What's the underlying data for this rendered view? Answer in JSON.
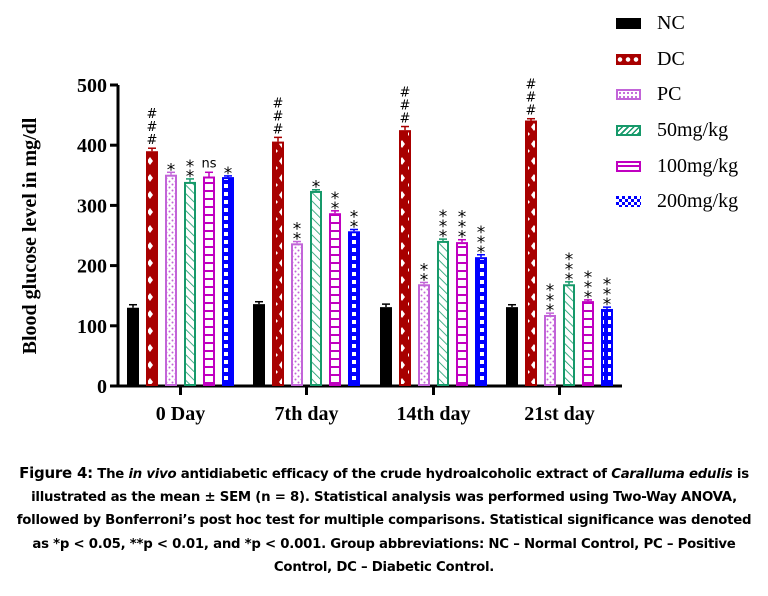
{
  "chart_data": {
    "type": "bar",
    "title": "",
    "xlabel": "",
    "ylabel": "Blood glucose level in mg/dl",
    "ylim": [
      0,
      500
    ],
    "yticks": [
      0,
      100,
      200,
      300,
      400,
      500
    ],
    "grid": false,
    "legend_position": "top-right",
    "categories": [
      "0 Day",
      "7th day",
      "14th day",
      "21st day"
    ],
    "series": [
      {
        "name": "NC",
        "color": "#000000",
        "pattern": "solid",
        "values": [
          130,
          136,
          131,
          131
        ],
        "sem": [
          5,
          4,
          5,
          4
        ],
        "annotations": [
          "",
          "",
          "",
          ""
        ]
      },
      {
        "name": "DC",
        "color": "#a80000",
        "pattern": "diamonds",
        "values": [
          390,
          406,
          425,
          441
        ],
        "sem": [
          5,
          7,
          6,
          3
        ],
        "annotations": [
          "###",
          "###",
          "###",
          "###"
        ]
      },
      {
        "name": "PC",
        "color": "#c264d8",
        "pattern": "dots",
        "values": [
          351,
          237,
          169,
          118
        ],
        "sem": [
          4,
          3,
          3,
          3
        ],
        "annotations": [
          "*",
          "**",
          "**",
          "***"
        ]
      },
      {
        "name": "50mg/kg",
        "color": "#16996a",
        "pattern": "diagonal",
        "values": [
          339,
          324,
          241,
          169
        ],
        "sem": [
          5,
          2,
          3,
          4
        ],
        "annotations": [
          "**",
          "*",
          "***",
          "***"
        ]
      },
      {
        "name": "100mg/kg",
        "color": "#c000c0",
        "pattern": "horizontal",
        "values": [
          348,
          287,
          239,
          141
        ],
        "sem": [
          7,
          4,
          4,
          2
        ],
        "annotations": [
          "ns",
          "**",
          "***",
          "***"
        ]
      },
      {
        "name": "200mg/kg",
        "color": "#0000ff",
        "pattern": "checker",
        "values": [
          347,
          257,
          214,
          128
        ],
        "sem": [
          2,
          3,
          4,
          3
        ],
        "annotations": [
          "*",
          "**",
          "***",
          "***"
        ]
      }
    ]
  },
  "caption": {
    "figure_label": "Figure 4:",
    "line1_a": " The ",
    "line1_italic": "in vivo",
    "line1_b": " antidiabetic efficacy of the crude hydroalcoholic extract of ",
    "line1_species": "Caralluma edulis",
    "line1_c": " is",
    "line2": "illustrated as the mean ± SEM (n = 8). Statistical analysis was performed using Two-Way ANOVA,",
    "line3": "followed by Bonferroni’s post hoc test for multiple comparisons. Statistical significance was denoted",
    "line4": "as *p < 0.05, **p < 0.01, and *p < 0.001. Group abbreviations: NC – Normal Control, PC – Positive",
    "line5": "Control, DC – Diabetic Control."
  }
}
